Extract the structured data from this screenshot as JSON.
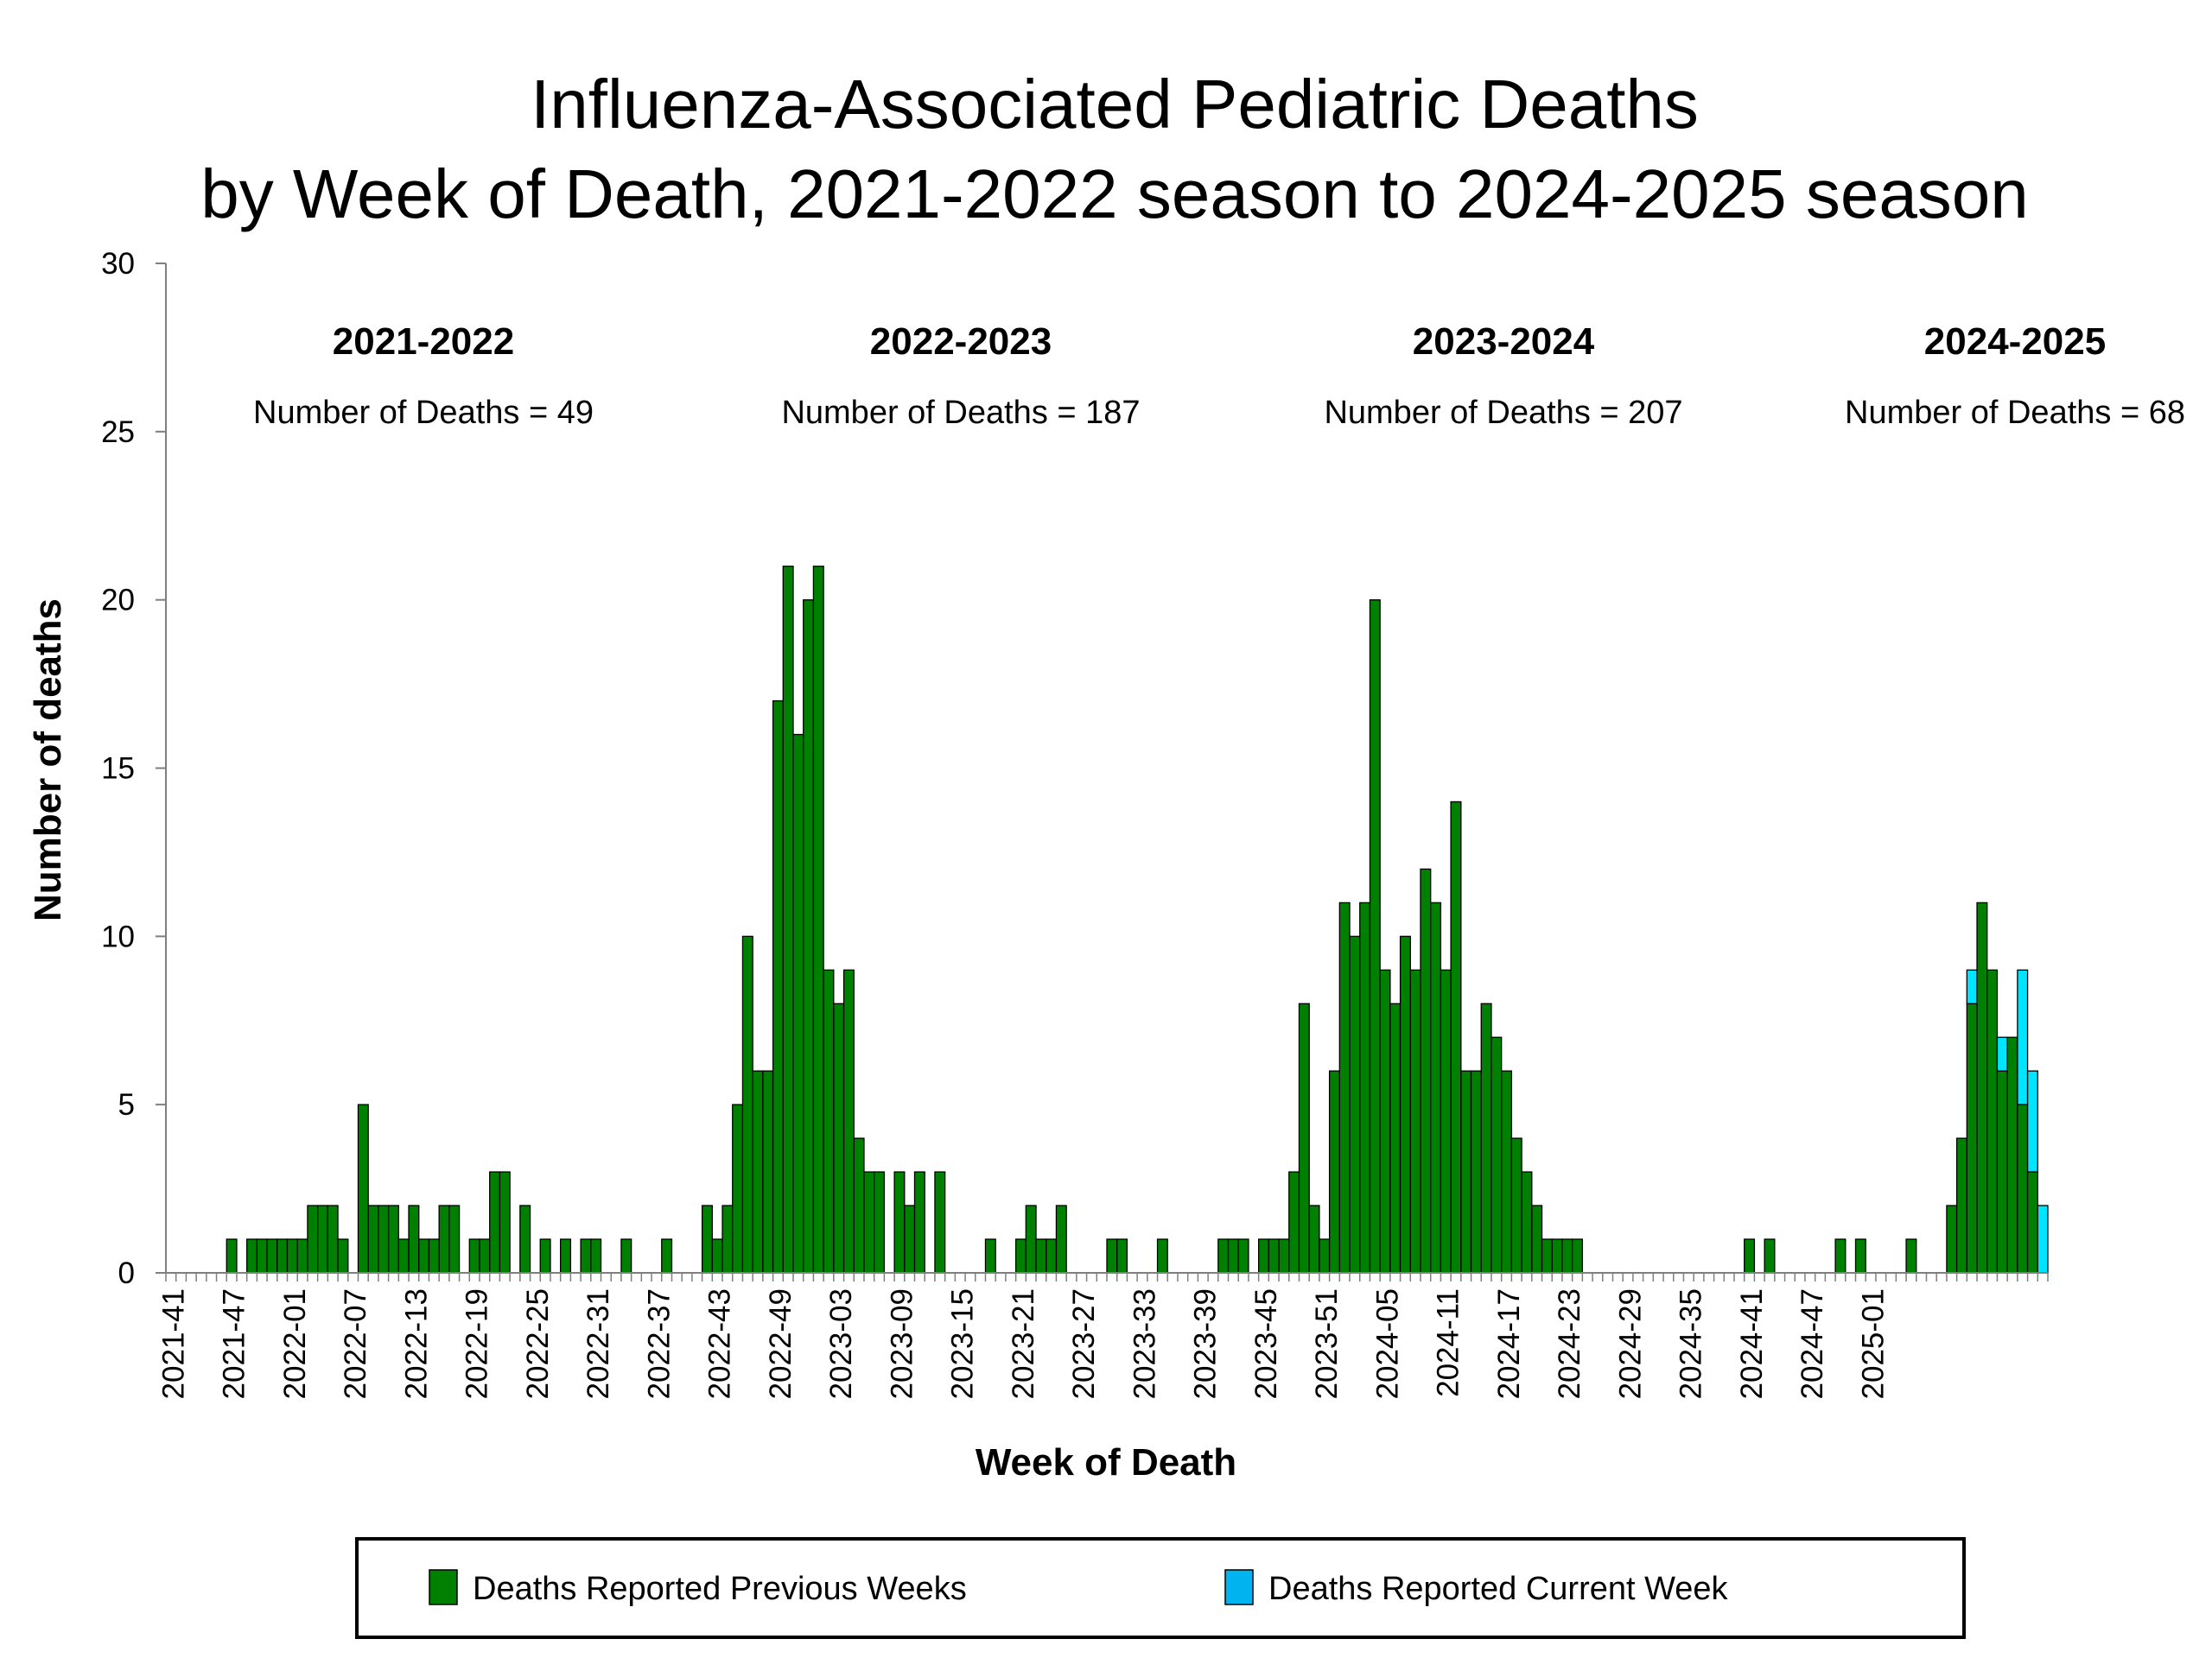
{
  "chart_data": {
    "type": "bar",
    "stacked": true,
    "title": [
      "Influenza-Associated Pediatric Deaths",
      "by Week of Death, 2021-2022 season to 2024-2025 season"
    ],
    "xlabel": "Week of Death",
    "ylabel": "Number of deaths",
    "ylim": [
      0,
      30
    ],
    "yticks": [
      0,
      5,
      10,
      15,
      20,
      25,
      30
    ],
    "x_tick_labels": [
      "2021-41",
      "2021-47",
      "2022-01",
      "2022-07",
      "2022-13",
      "2022-19",
      "2022-25",
      "2022-31",
      "2022-37",
      "2022-43",
      "2022-49",
      "2023-03",
      "2023-09",
      "2023-15",
      "2023-21",
      "2023-27",
      "2023-33",
      "2023-39",
      "2023-45",
      "2023-51",
      "2024-05",
      "2024-11",
      "2024-17",
      "2024-23",
      "2024-29",
      "2024-35",
      "2024-41",
      "2024-47",
      "2025-01"
    ],
    "tick_every": 6,
    "start_week": "2021-41",
    "colors": {
      "previous": "#008000",
      "current": "#00e5ff",
      "legend_current": "#00b4f0"
    },
    "series": [
      {
        "name": "Deaths Reported Previous Weeks",
        "values": [
          0,
          0,
          0,
          0,
          0,
          0,
          1,
          0,
          1,
          1,
          1,
          1,
          1,
          1,
          2,
          2,
          2,
          1,
          0,
          5,
          2,
          2,
          2,
          1,
          2,
          1,
          1,
          2,
          2,
          0,
          1,
          1,
          3,
          3,
          0,
          2,
          0,
          1,
          0,
          1,
          0,
          1,
          1,
          0,
          0,
          1,
          0,
          0,
          0,
          1,
          0,
          0,
          0,
          2,
          1,
          2,
          5,
          10,
          6,
          6,
          17,
          21,
          16,
          20,
          21,
          9,
          8,
          9,
          4,
          3,
          3,
          0,
          3,
          2,
          3,
          0,
          3,
          0,
          0,
          0,
          0,
          1,
          0,
          0,
          1,
          2,
          1,
          1,
          2,
          0,
          0,
          0,
          0,
          1,
          1,
          0,
          0,
          0,
          1,
          0,
          0,
          0,
          0,
          0,
          1,
          1,
          1,
          0,
          1,
          1,
          1,
          3,
          8,
          2,
          1,
          6,
          11,
          10,
          11,
          20,
          9,
          8,
          10,
          9,
          12,
          11,
          9,
          14,
          6,
          6,
          8,
          7,
          6,
          4,
          3,
          2,
          1,
          1,
          1,
          1,
          0,
          0,
          0,
          0,
          0,
          0,
          0,
          0,
          0,
          0,
          0,
          0,
          0,
          0,
          0,
          0,
          1,
          0,
          1,
          0,
          0,
          0,
          0,
          0,
          0,
          1,
          0,
          1,
          0,
          0,
          0,
          0,
          1,
          0,
          0,
          0,
          2,
          4,
          8,
          11,
          9,
          6,
          7,
          5,
          3,
          0
        ]
      },
      {
        "name": "Deaths Reported Current Week",
        "values": [
          0,
          0,
          0,
          0,
          0,
          0,
          0,
          0,
          0,
          0,
          0,
          0,
          0,
          0,
          0,
          0,
          0,
          0,
          0,
          0,
          0,
          0,
          0,
          0,
          0,
          0,
          0,
          0,
          0,
          0,
          0,
          0,
          0,
          0,
          0,
          0,
          0,
          0,
          0,
          0,
          0,
          0,
          0,
          0,
          0,
          0,
          0,
          0,
          0,
          0,
          0,
          0,
          0,
          0,
          0,
          0,
          0,
          0,
          0,
          0,
          0,
          0,
          0,
          0,
          0,
          0,
          0,
          0,
          0,
          0,
          0,
          0,
          0,
          0,
          0,
          0,
          0,
          0,
          0,
          0,
          0,
          0,
          0,
          0,
          0,
          0,
          0,
          0,
          0,
          0,
          0,
          0,
          0,
          0,
          0,
          0,
          0,
          0,
          0,
          0,
          0,
          0,
          0,
          0,
          0,
          0,
          0,
          0,
          0,
          0,
          0,
          0,
          0,
          0,
          0,
          0,
          0,
          0,
          0,
          0,
          0,
          0,
          0,
          0,
          0,
          0,
          0,
          0,
          0,
          0,
          0,
          0,
          0,
          0,
          0,
          0,
          0,
          0,
          0,
          0,
          0,
          0,
          0,
          0,
          0,
          0,
          0,
          0,
          0,
          0,
          0,
          0,
          0,
          0,
          0,
          0,
          0,
          0,
          0,
          0,
          0,
          0,
          0,
          0,
          0,
          0,
          0,
          0,
          0,
          0,
          0,
          0,
          0,
          0,
          0,
          0,
          0,
          0,
          1,
          0,
          0,
          1,
          0,
          4,
          3,
          2
        ]
      }
    ],
    "seasons": [
      {
        "name": "2021-2022",
        "count_label": "Number of Deaths = 49"
      },
      {
        "name": "2022-2023",
        "count_label": "Number of Deaths = 187"
      },
      {
        "name": "2023-2024",
        "count_label": "Number of Deaths = 207"
      },
      {
        "name": "2024-2025",
        "count_label": "Number of Deaths = 68"
      }
    ],
    "legend": {
      "position": "bottom",
      "items": [
        {
          "label": "Deaths Reported Previous Weeks",
          "color": "#008000"
        },
        {
          "label": "Deaths Reported Current Week",
          "color": "#00b4f0"
        }
      ]
    }
  }
}
